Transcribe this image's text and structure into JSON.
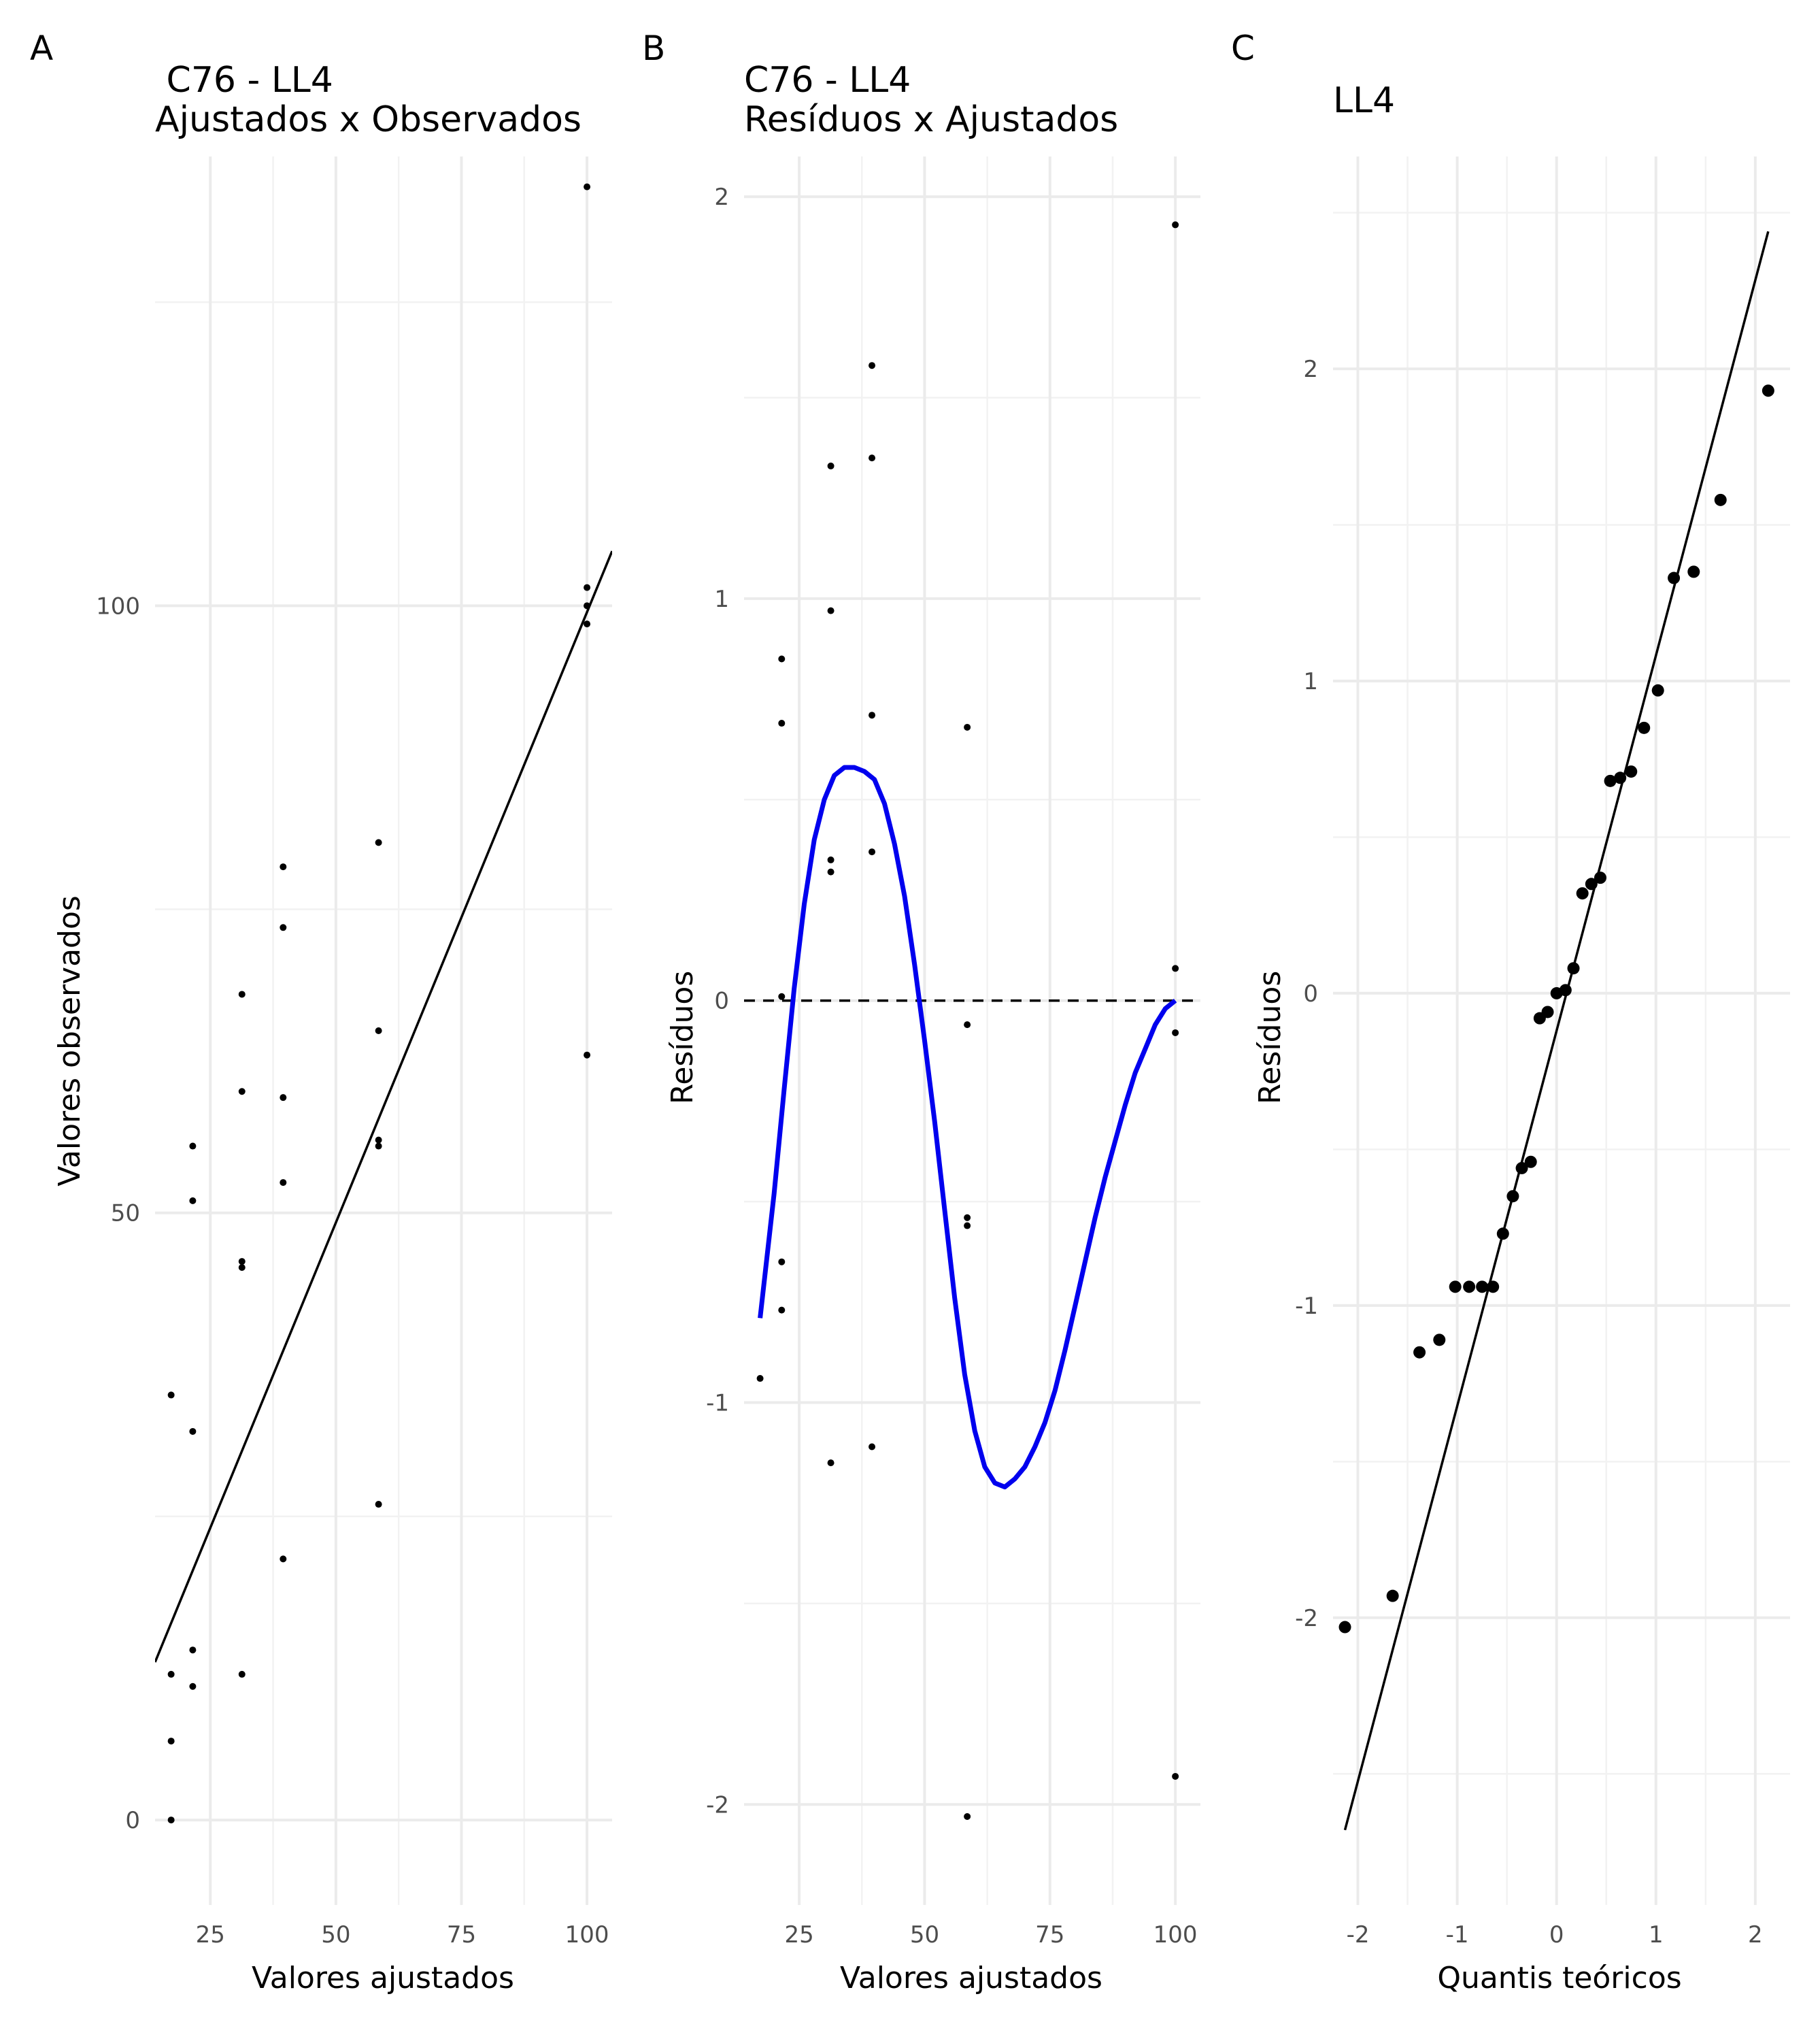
{
  "chart_data": [
    {
      "panel_label": "A",
      "type": "scatter",
      "title_lines": [
        " C76 - LL4",
        "Ajustados x Observados"
      ],
      "xlabel": "Valores ajustados",
      "ylabel": "Valores observados",
      "xlim": [
        14,
        105
      ],
      "ylim": [
        -7,
        137
      ],
      "x_ticks": [
        25,
        50,
        75,
        100
      ],
      "y_ticks": [
        0,
        50,
        100
      ],
      "x_tick_labels": [
        "25",
        "50",
        "75",
        "100"
      ],
      "y_tick_labels": [
        "0",
        "50",
        "100"
      ],
      "points": [
        [
          17.2,
          0
        ],
        [
          17.2,
          6.5
        ],
        [
          17.2,
          12
        ],
        [
          17.2,
          35
        ],
        [
          21.5,
          11
        ],
        [
          21.5,
          14
        ],
        [
          21.5,
          32
        ],
        [
          21.5,
          51
        ],
        [
          21.5,
          55.5
        ],
        [
          31.3,
          12
        ],
        [
          31.3,
          45.5
        ],
        [
          31.3,
          46
        ],
        [
          31.3,
          60
        ],
        [
          31.3,
          68
        ],
        [
          39.5,
          21.5
        ],
        [
          39.5,
          52.5
        ],
        [
          39.5,
          59.5
        ],
        [
          39.5,
          73.5
        ],
        [
          39.5,
          78.5
        ],
        [
          58.5,
          26
        ],
        [
          58.5,
          55.5
        ],
        [
          58.5,
          56
        ],
        [
          58.5,
          65
        ],
        [
          58.5,
          80.5
        ],
        [
          100,
          63
        ],
        [
          100,
          98.5
        ],
        [
          100,
          100
        ],
        [
          100,
          101.5
        ],
        [
          100,
          134.5
        ]
      ],
      "line": {
        "x": [
          14,
          105
        ],
        "y": [
          13.0,
          104.5
        ]
      }
    },
    {
      "panel_label": "B",
      "type": "scatter",
      "title_lines": [
        "C76 - LL4",
        "Resíduos x Ajustados"
      ],
      "xlabel": "Valores ajustados",
      "ylabel": "Resíduos",
      "xlim": [
        14,
        105
      ],
      "ylim": [
        -2.25,
        2.1
      ],
      "x_ticks": [
        25,
        50,
        75,
        100
      ],
      "y_ticks": [
        -2,
        -1,
        0,
        1,
        2
      ],
      "x_tick_labels": [
        "25",
        "50",
        "75",
        "100"
      ],
      "y_tick_labels": [
        "-2",
        "-1",
        "0",
        "1",
        "2"
      ],
      "points": [
        [
          17.2,
          -0.94
        ],
        [
          21.5,
          0.85
        ],
        [
          21.5,
          0.69
        ],
        [
          21.5,
          0.01
        ],
        [
          21.5,
          -0.65
        ],
        [
          21.5,
          -0.77
        ],
        [
          31.3,
          1.33
        ],
        [
          31.3,
          0.97
        ],
        [
          31.3,
          0.35
        ],
        [
          31.3,
          0.32
        ],
        [
          31.3,
          -1.15
        ],
        [
          39.5,
          1.58
        ],
        [
          39.5,
          1.35
        ],
        [
          39.5,
          0.71
        ],
        [
          39.5,
          0.37
        ],
        [
          39.5,
          -1.11
        ],
        [
          58.5,
          0.68
        ],
        [
          58.5,
          -0.06
        ],
        [
          58.5,
          -0.54
        ],
        [
          58.5,
          -0.56
        ],
        [
          58.5,
          -2.03
        ],
        [
          100,
          1.93
        ],
        [
          100,
          0.08
        ],
        [
          100,
          -0.08
        ],
        [
          100,
          -1.93
        ]
      ],
      "hline_y": 0,
      "smooth": {
        "x": [
          17.2,
          20,
          22,
          24,
          26,
          28,
          30,
          32,
          34,
          36,
          38,
          40,
          42,
          44,
          46,
          48,
          50,
          52,
          54,
          56,
          58,
          60,
          62,
          64,
          66,
          68,
          70,
          72,
          74,
          76,
          78,
          80,
          82,
          84,
          86,
          88,
          90,
          92,
          94,
          96,
          98,
          100
        ],
        "y": [
          -0.79,
          -0.48,
          -0.22,
          0.03,
          0.24,
          0.4,
          0.5,
          0.56,
          0.58,
          0.58,
          0.57,
          0.55,
          0.49,
          0.39,
          0.26,
          0.09,
          -0.1,
          -0.3,
          -0.52,
          -0.74,
          -0.93,
          -1.07,
          -1.16,
          -1.2,
          -1.21,
          -1.19,
          -1.16,
          -1.11,
          -1.05,
          -0.97,
          -0.87,
          -0.76,
          -0.65,
          -0.54,
          -0.44,
          -0.35,
          -0.26,
          -0.18,
          -0.12,
          -0.06,
          -0.02,
          0.0
        ]
      }
    },
    {
      "panel_label": "C",
      "type": "scatter",
      "title_lines": [
        "LL4"
      ],
      "xlabel": "Quantis teóricos",
      "ylabel": "Resíduos",
      "xlim": [
        -2.25,
        2.35
      ],
      "ylim": [
        -2.92,
        2.68
      ],
      "x_ticks": [
        -2,
        -1,
        0,
        1,
        2
      ],
      "y_ticks": [
        -2,
        -1,
        0,
        1,
        2
      ],
      "x_tick_labels": [
        "-2",
        "-1",
        "0",
        "1",
        "2"
      ],
      "y_tick_labels": [
        "-2",
        "-1",
        "0",
        "1",
        "2"
      ],
      "points": [
        [
          -2.13,
          -2.03
        ],
        [
          -1.65,
          -1.93
        ],
        [
          -1.38,
          -1.15
        ],
        [
          -1.18,
          -1.11
        ],
        [
          -1.02,
          -0.94
        ],
        [
          -0.88,
          -0.94
        ],
        [
          -0.75,
          -0.94
        ],
        [
          -0.64,
          -0.94
        ],
        [
          -0.54,
          -0.77
        ],
        [
          -0.44,
          -0.65
        ],
        [
          -0.35,
          -0.56
        ],
        [
          -0.26,
          -0.54
        ],
        [
          -0.17,
          -0.08
        ],
        [
          -0.09,
          -0.06
        ],
        [
          0,
          0.0
        ],
        [
          0.09,
          0.01
        ],
        [
          0.17,
          0.08
        ],
        [
          0.26,
          0.32
        ],
        [
          0.35,
          0.35
        ],
        [
          0.44,
          0.37
        ],
        [
          0.54,
          0.68
        ],
        [
          0.64,
          0.69
        ],
        [
          0.75,
          0.71
        ],
        [
          0.88,
          0.85
        ],
        [
          1.02,
          0.97
        ],
        [
          1.18,
          1.33
        ],
        [
          1.38,
          1.35
        ],
        [
          1.65,
          1.58
        ],
        [
          2.13,
          1.93
        ]
      ],
      "line": {
        "x": [
          -2.13,
          2.13
        ],
        "y": [
          -2.68,
          2.44
        ]
      }
    }
  ]
}
